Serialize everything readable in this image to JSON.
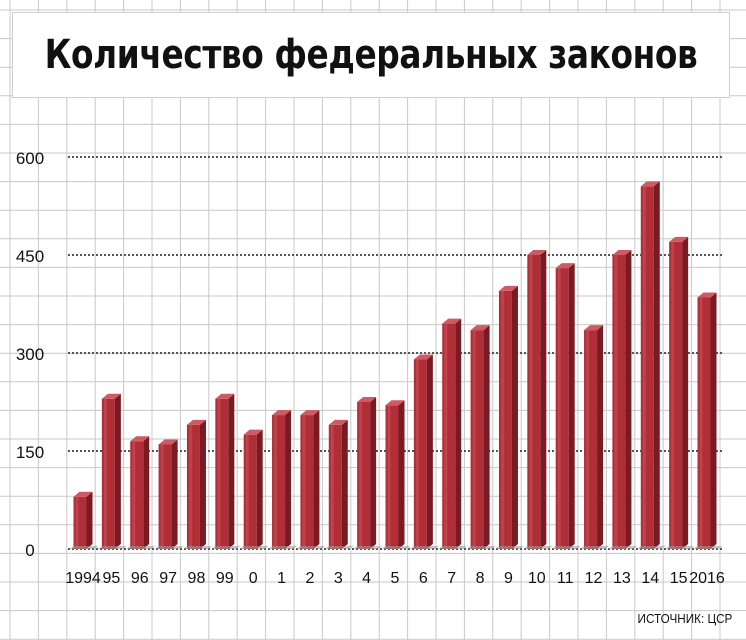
{
  "chart_data": {
    "type": "bar",
    "title": "Количество федеральных законов",
    "source": "ИСТОЧНИК: ЦСР",
    "categories": [
      "1994",
      "95",
      "96",
      "97",
      "98",
      "99",
      "0",
      "1",
      "2",
      "3",
      "4",
      "5",
      "6",
      "7",
      "8",
      "9",
      "10",
      "11",
      "12",
      "13",
      "14",
      "15",
      "2016"
    ],
    "values": [
      80,
      230,
      165,
      160,
      190,
      230,
      175,
      205,
      205,
      190,
      225,
      220,
      290,
      345,
      335,
      395,
      450,
      430,
      335,
      450,
      555,
      470,
      385
    ],
    "yticks": [
      0,
      150,
      300,
      450,
      600
    ],
    "ylim": [
      0,
      600
    ],
    "xlabel": "",
    "ylabel": "",
    "grid": true,
    "bar_color": "#b5333b"
  }
}
